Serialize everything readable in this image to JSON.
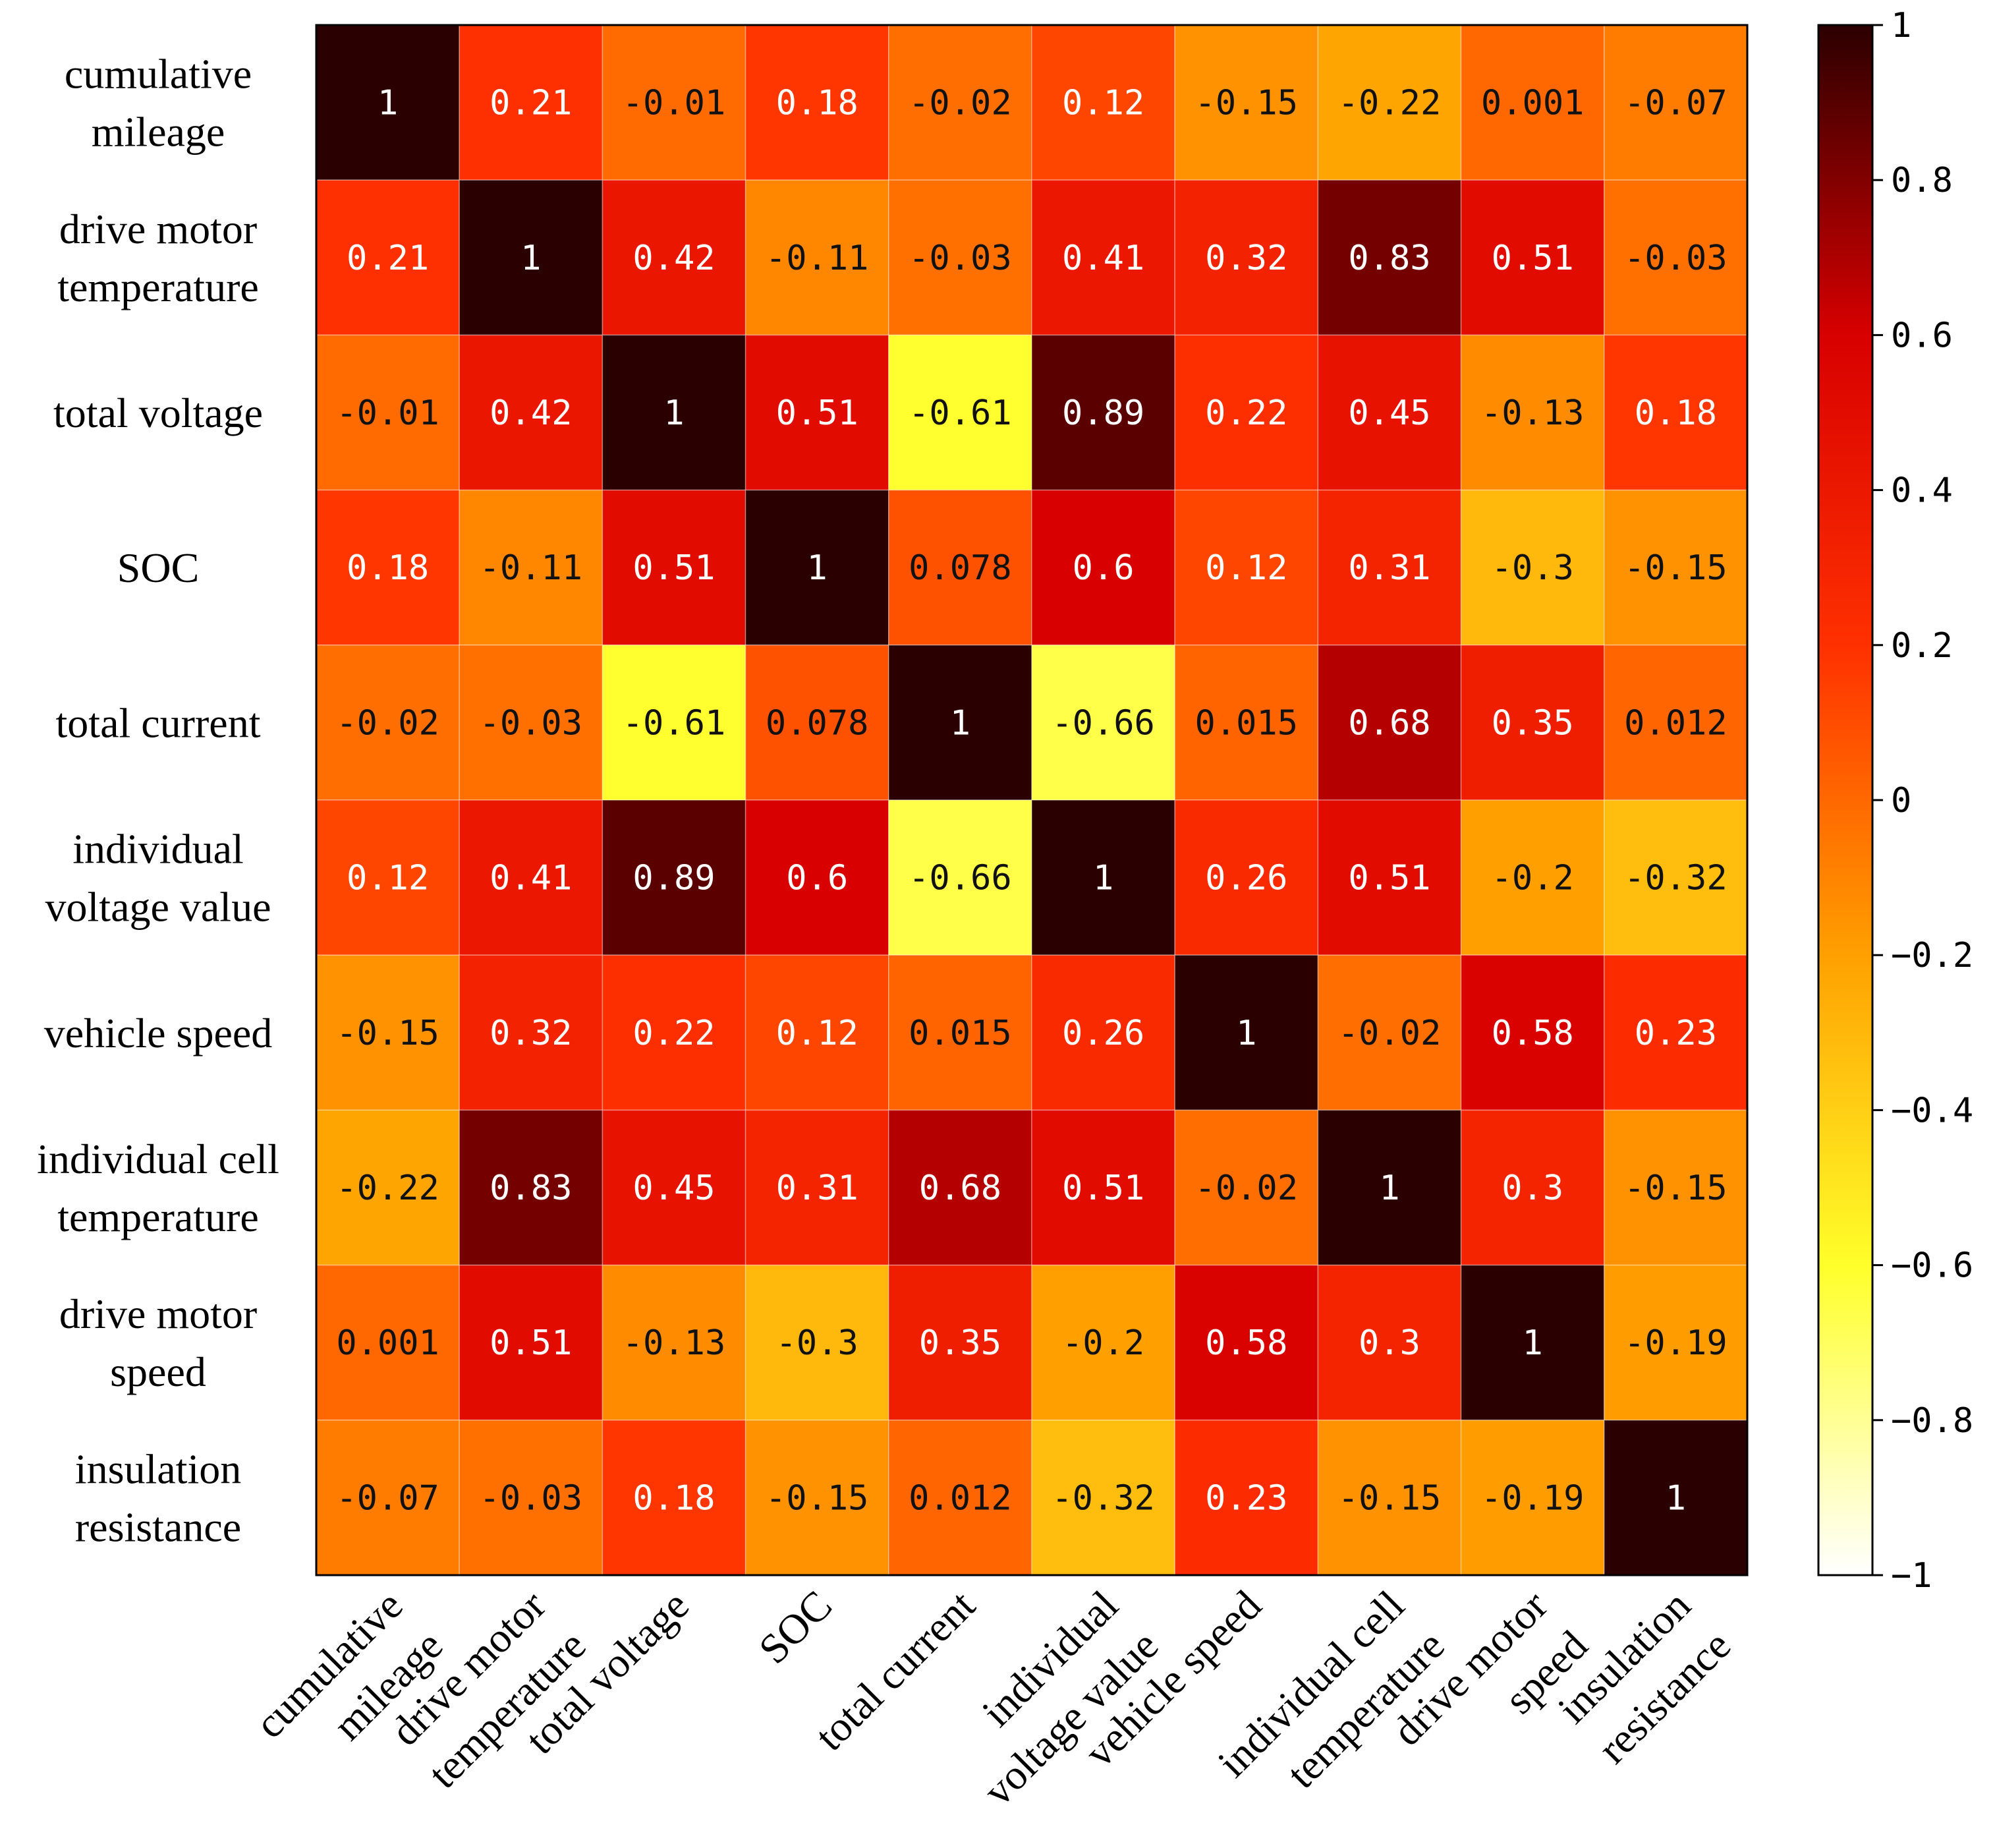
{
  "chart_data": {
    "type": "heatmap",
    "title": "",
    "row_labels": [
      [
        "cumulative",
        "mileage"
      ],
      [
        "drive motor",
        "temperature"
      ],
      [
        "total voltage"
      ],
      [
        "SOC"
      ],
      [
        "total current"
      ],
      [
        "individual",
        "voltage value"
      ],
      [
        "vehicle speed"
      ],
      [
        "individual cell",
        "temperature"
      ],
      [
        "drive motor",
        "speed"
      ],
      [
        "insulation",
        "resistance"
      ]
    ],
    "col_labels": [
      [
        "cumulative",
        "mileage"
      ],
      [
        "drive motor",
        "temperature"
      ],
      [
        "total voltage"
      ],
      [
        "SOC"
      ],
      [
        "total current"
      ],
      [
        "individual",
        "voltage value"
      ],
      [
        "vehicle speed"
      ],
      [
        "individual cell",
        "temperature"
      ],
      [
        "drive motor",
        "speed"
      ],
      [
        "insulation",
        "resistance"
      ]
    ],
    "values": [
      [
        1,
        0.21,
        -0.01,
        0.18,
        -0.02,
        0.12,
        -0.15,
        -0.22,
        0.001,
        -0.07
      ],
      [
        0.21,
        1,
        0.42,
        -0.11,
        -0.03,
        0.41,
        0.32,
        0.83,
        0.51,
        -0.03
      ],
      [
        -0.01,
        0.42,
        1,
        0.51,
        -0.61,
        0.89,
        0.22,
        0.45,
        -0.13,
        0.18
      ],
      [
        0.18,
        -0.11,
        0.51,
        1,
        0.078,
        0.6,
        0.12,
        0.31,
        -0.3,
        -0.15
      ],
      [
        -0.02,
        -0.03,
        -0.61,
        0.078,
        1,
        -0.66,
        0.015,
        0.68,
        0.35,
        0.012
      ],
      [
        0.12,
        0.41,
        0.89,
        0.6,
        -0.66,
        1,
        0.26,
        0.51,
        -0.2,
        -0.32
      ],
      [
        -0.15,
        0.32,
        0.22,
        0.12,
        0.015,
        0.26,
        1,
        -0.02,
        0.58,
        0.23
      ],
      [
        -0.22,
        0.83,
        0.45,
        0.31,
        0.68,
        0.51,
        -0.02,
        1,
        0.3,
        -0.15
      ],
      [
        0.001,
        0.51,
        -0.13,
        -0.3,
        0.35,
        -0.2,
        0.58,
        0.3,
        1,
        -0.19
      ],
      [
        -0.07,
        -0.03,
        0.18,
        -0.15,
        0.012,
        -0.32,
        0.23,
        -0.15,
        -0.19,
        1
      ]
    ],
    "value_labels": [
      [
        "1",
        "0.21",
        "-0.01",
        "0.18",
        "-0.02",
        "0.12",
        "-0.15",
        "-0.22",
        "0.001",
        "-0.07"
      ],
      [
        "0.21",
        "1",
        "0.42",
        "-0.11",
        "-0.03",
        "0.41",
        "0.32",
        "0.83",
        "0.51",
        "-0.03"
      ],
      [
        "-0.01",
        "0.42",
        "1",
        "0.51",
        "-0.61",
        "0.89",
        "0.22",
        "0.45",
        "-0.13",
        "0.18"
      ],
      [
        "0.18",
        "-0.11",
        "0.51",
        "1",
        "0.078",
        "0.6",
        "0.12",
        "0.31",
        "-0.3",
        "-0.15"
      ],
      [
        "-0.02",
        "-0.03",
        "-0.61",
        "0.078",
        "1",
        "-0.66",
        "0.015",
        "0.68",
        "0.35",
        "0.012"
      ],
      [
        "0.12",
        "0.41",
        "0.89",
        "0.6",
        "-0.66",
        "1",
        "0.26",
        "0.51",
        "-0.2",
        "-0.32"
      ],
      [
        "-0.15",
        "0.32",
        "0.22",
        "0.12",
        "0.015",
        "0.26",
        "1",
        "-0.02",
        "0.58",
        "0.23"
      ],
      [
        "-0.22",
        "0.83",
        "0.45",
        "0.31",
        "0.68",
        "0.51",
        "-0.02",
        "1",
        "0.3",
        "-0.15"
      ],
      [
        "0.001",
        "0.51",
        "-0.13",
        "-0.3",
        "0.35",
        "-0.2",
        "0.58",
        "0.3",
        "1",
        "-0.19"
      ],
      [
        "-0.07",
        "-0.03",
        "0.18",
        "-0.15",
        "0.012",
        "-0.32",
        "0.23",
        "-0.15",
        "-0.19",
        "1"
      ]
    ],
    "colorbar": {
      "range": [
        -1,
        1
      ],
      "ticks": [
        1,
        0.8,
        0.6,
        0.4,
        0.2,
        0,
        -0.2,
        -0.4,
        -0.6,
        -0.8,
        -1
      ],
      "tick_labels": [
        "1",
        "0.8",
        "0.6",
        "0.4",
        "0.2",
        "0",
        "−0.2",
        "−0.4",
        "−0.6",
        "−0.8",
        "−1"
      ],
      "colormap": "hot_r",
      "stops": [
        {
          "v": -1.0,
          "color": "#ffffff"
        },
        {
          "v": -0.6,
          "color": "#ffff2a"
        },
        {
          "v": -0.2,
          "color": "#ffa000"
        },
        {
          "v": 0.2,
          "color": "#ff3000"
        },
        {
          "v": 0.6,
          "color": "#d80000"
        },
        {
          "v": 1.0,
          "color": "#2b0000"
        }
      ]
    }
  }
}
